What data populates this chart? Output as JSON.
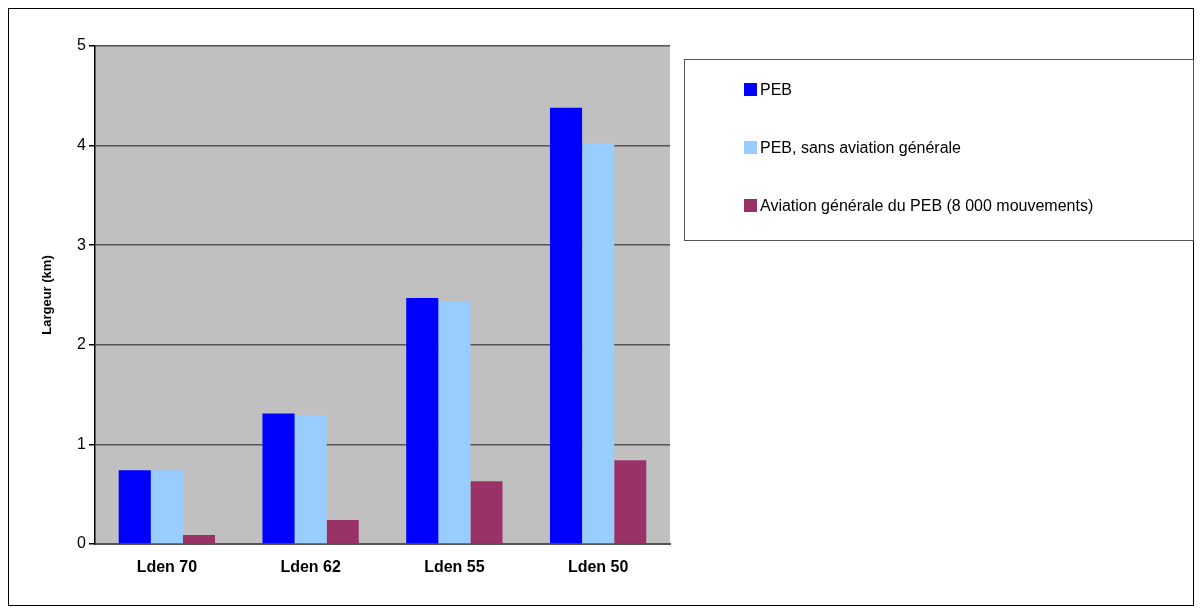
{
  "chart_data": {
    "type": "bar",
    "ylabel": "Largeur (km)",
    "categories": [
      "Lden 70",
      "Lden 62",
      "Lden 55",
      "Lden 50"
    ],
    "series": [
      {
        "name": "PEB",
        "color": "#0000ff",
        "values": [
          0.74,
          1.31,
          2.47,
          4.38
        ]
      },
      {
        "name": "PEB, sans aviation générale",
        "color": "#99ccff",
        "values": [
          0.74,
          1.29,
          2.43,
          4.02
        ]
      },
      {
        "name": "Aviation générale du PEB (8 000 mouvements)",
        "color": "#993366",
        "values": [
          0.09,
          0.24,
          0.63,
          0.84
        ]
      }
    ],
    "ylim": [
      0,
      5
    ],
    "yticks": [
      0,
      1,
      2,
      3,
      4,
      5
    ],
    "grid": "y",
    "legend": "right"
  }
}
